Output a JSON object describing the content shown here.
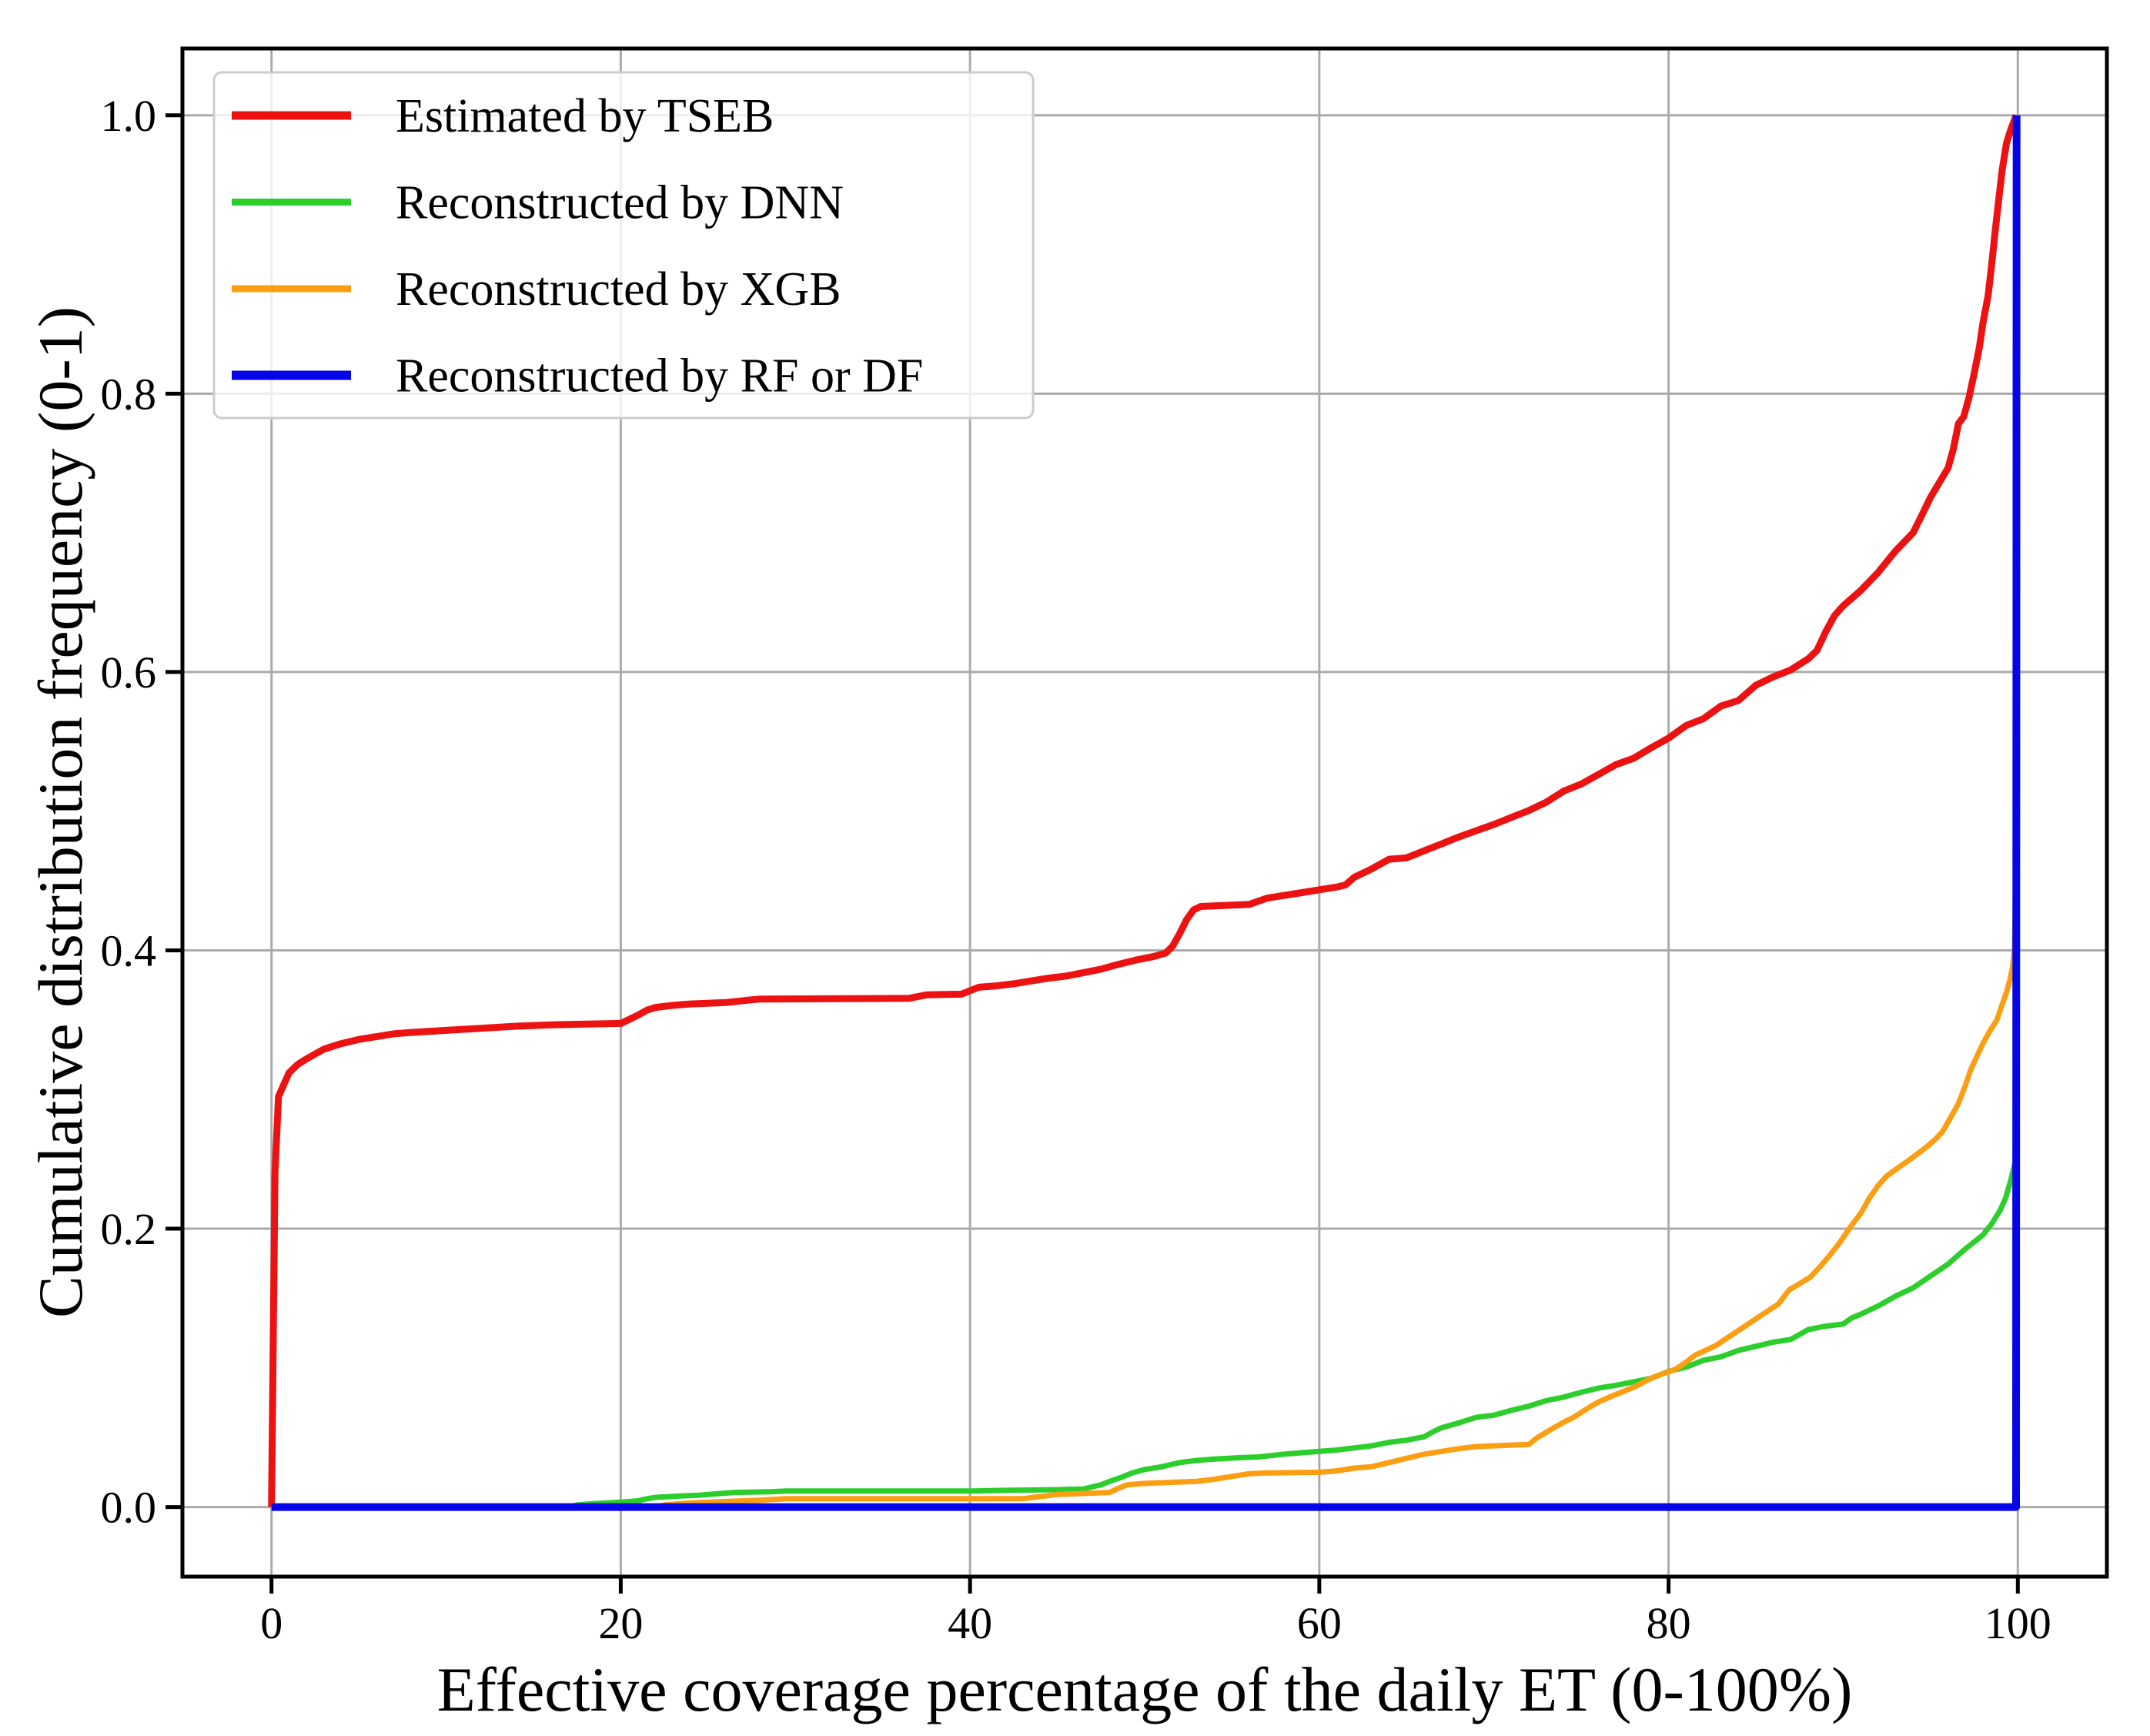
{
  "figure": {
    "background": "#ffffff",
    "grid_color": "#ababab",
    "spine_color": "#000000",
    "legend_border_color": "#cccccc",
    "legend_background": "rgba(255,255,255,0.8)"
  },
  "chart_data": {
    "type": "line",
    "subtype": "empirical-cdf",
    "title": "",
    "xlabel": "Effective coverage percentage of the daily ET (0-100%)",
    "ylabel": "Cumulative distribution frequency (0-1)",
    "xlim": [
      -5.1,
      105.1
    ],
    "ylim": [
      -0.05,
      1.048
    ],
    "xticks": [
      0,
      20,
      40,
      60,
      80,
      100
    ],
    "xtick_labels": [
      "0",
      "20",
      "40",
      "60",
      "80",
      "100"
    ],
    "yticks": [
      0.0,
      0.2,
      0.4,
      0.6,
      0.8,
      1.0
    ],
    "ytick_labels": [
      "0.0",
      "0.2",
      "0.4",
      "0.6",
      "0.8",
      "1.0"
    ],
    "grid": true,
    "legend_position": "upper-left",
    "series": [
      {
        "name": "Estimated by TSEB",
        "color": "#ec1212",
        "width": 9,
        "points": [
          [
            0,
            0
          ],
          [
            0.2,
            0.24
          ],
          [
            0.4,
            0.295
          ],
          [
            1,
            0.312
          ],
          [
            1.5,
            0.318
          ],
          [
            2,
            0.322
          ],
          [
            3,
            0.329
          ],
          [
            4,
            0.333
          ],
          [
            5,
            0.336
          ],
          [
            6,
            0.338
          ],
          [
            7,
            0.34
          ],
          [
            8,
            0.341
          ],
          [
            10,
            0.3425
          ],
          [
            12,
            0.344
          ],
          [
            14,
            0.3455
          ],
          [
            16,
            0.3465
          ],
          [
            18,
            0.347
          ],
          [
            20,
            0.3475
          ],
          [
            20.5,
            0.3505
          ],
          [
            21,
            0.3535
          ],
          [
            21.5,
            0.357
          ],
          [
            22,
            0.359
          ],
          [
            23,
            0.3605
          ],
          [
            24,
            0.3615
          ],
          [
            26,
            0.3625
          ],
          [
            27.5,
            0.3645
          ],
          [
            28,
            0.365
          ],
          [
            36.5,
            0.3655
          ],
          [
            37.5,
            0.368
          ],
          [
            39.5,
            0.3685
          ],
          [
            40,
            0.371
          ],
          [
            40.5,
            0.3735
          ],
          [
            41.5,
            0.3745
          ],
          [
            42.5,
            0.376
          ],
          [
            43.5,
            0.378
          ],
          [
            44.5,
            0.38
          ],
          [
            45.5,
            0.3815
          ],
          [
            46.5,
            0.384
          ],
          [
            47.5,
            0.3865
          ],
          [
            48.5,
            0.39
          ],
          [
            49.5,
            0.393
          ],
          [
            50.5,
            0.3955
          ],
          [
            51.2,
            0.398
          ],
          [
            51.6,
            0.403
          ],
          [
            52,
            0.412
          ],
          [
            52.4,
            0.422
          ],
          [
            52.8,
            0.429
          ],
          [
            53.2,
            0.4315
          ],
          [
            56,
            0.433
          ],
          [
            57,
            0.4375
          ],
          [
            58,
            0.4395
          ],
          [
            59,
            0.4415
          ],
          [
            60,
            0.4435
          ],
          [
            61,
            0.4455
          ],
          [
            61.5,
            0.447
          ],
          [
            62,
            0.4525
          ],
          [
            63,
            0.4585
          ],
          [
            64,
            0.4655
          ],
          [
            65,
            0.4665
          ],
          [
            66,
            0.4715
          ],
          [
            67,
            0.4765
          ],
          [
            68,
            0.4815
          ],
          [
            69,
            0.486
          ],
          [
            70,
            0.4905
          ],
          [
            71,
            0.4955
          ],
          [
            72,
            0.5005
          ],
          [
            73,
            0.5065
          ],
          [
            74,
            0.5145
          ],
          [
            75,
            0.5195
          ],
          [
            76,
            0.5265
          ],
          [
            77,
            0.5335
          ],
          [
            78,
            0.538
          ],
          [
            79,
            0.5455
          ],
          [
            80,
            0.5525
          ],
          [
            81,
            0.5615
          ],
          [
            82,
            0.5665
          ],
          [
            83,
            0.5755
          ],
          [
            84,
            0.5795
          ],
          [
            85,
            0.5905
          ],
          [
            86,
            0.5965
          ],
          [
            87,
            0.6015
          ],
          [
            88,
            0.6095
          ],
          [
            88.5,
            0.6155
          ],
          [
            89,
            0.629
          ],
          [
            89.5,
            0.6405
          ],
          [
            90,
            0.6475
          ],
          [
            91,
            0.6585
          ],
          [
            92,
            0.6715
          ],
          [
            93,
            0.687
          ],
          [
            94,
            0.7
          ],
          [
            94.5,
            0.7125
          ],
          [
            95,
            0.7255
          ],
          [
            95.5,
            0.736
          ],
          [
            96,
            0.7465
          ],
          [
            96.3,
            0.76
          ],
          [
            96.6,
            0.7785
          ],
          [
            96.9,
            0.7835
          ],
          [
            97.2,
            0.797
          ],
          [
            97.5,
            0.8145
          ],
          [
            97.8,
            0.8335
          ],
          [
            98,
            0.8505
          ],
          [
            98.3,
            0.8705
          ],
          [
            98.5,
            0.8925
          ],
          [
            98.7,
            0.9165
          ],
          [
            98.9,
            0.9385
          ],
          [
            99.1,
            0.9605
          ],
          [
            99.35,
            0.98
          ],
          [
            99.6,
            0.99
          ],
          [
            99.8,
            0.9965
          ],
          [
            99.9,
            1.0
          ]
        ]
      },
      {
        "name": "Reconstructed by DNN",
        "color": "#2bce2b",
        "width": 7,
        "points": [
          [
            0,
            0
          ],
          [
            17,
            0
          ],
          [
            17.5,
            0.0015
          ],
          [
            18.5,
            0.0025
          ],
          [
            20,
            0.0035
          ],
          [
            21,
            0.0045
          ],
          [
            21.5,
            0.006
          ],
          [
            22,
            0.007
          ],
          [
            23.5,
            0.008
          ],
          [
            24.5,
            0.0085
          ],
          [
            25.5,
            0.0095
          ],
          [
            26.5,
            0.0105
          ],
          [
            28.5,
            0.011
          ],
          [
            29.5,
            0.0115
          ],
          [
            40,
            0.0115
          ],
          [
            42,
            0.012
          ],
          [
            45,
            0.0125
          ],
          [
            46.5,
            0.013
          ],
          [
            47,
            0.0145
          ],
          [
            47.5,
            0.016
          ],
          [
            48,
            0.0185
          ],
          [
            48.6,
            0.021
          ],
          [
            49.3,
            0.0245
          ],
          [
            50,
            0.027
          ],
          [
            51,
            0.029
          ],
          [
            52,
            0.032
          ],
          [
            53,
            0.0335
          ],
          [
            54,
            0.0345
          ],
          [
            55.5,
            0.0355
          ],
          [
            56.5,
            0.036
          ],
          [
            58,
            0.038
          ],
          [
            60,
            0.04
          ],
          [
            61,
            0.041
          ],
          [
            62,
            0.0425
          ],
          [
            63,
            0.044
          ],
          [
            64,
            0.0465
          ],
          [
            65,
            0.048
          ],
          [
            66,
            0.0505
          ],
          [
            66.5,
            0.054
          ],
          [
            67,
            0.057
          ],
          [
            68,
            0.0605
          ],
          [
            69,
            0.0645
          ],
          [
            70,
            0.066
          ],
          [
            71,
            0.0695
          ],
          [
            72,
            0.0725
          ],
          [
            73,
            0.0765
          ],
          [
            74,
            0.079
          ],
          [
            75,
            0.0825
          ],
          [
            76,
            0.0855
          ],
          [
            77,
            0.0875
          ],
          [
            78,
            0.09
          ],
          [
            79,
            0.0925
          ],
          [
            80,
            0.0975
          ],
          [
            81,
            0.1005
          ],
          [
            82,
            0.1055
          ],
          [
            83,
            0.108
          ],
          [
            84,
            0.1125
          ],
          [
            85,
            0.1155
          ],
          [
            86,
            0.1185
          ],
          [
            87,
            0.1205
          ],
          [
            88,
            0.1275
          ],
          [
            89,
            0.13
          ],
          [
            90,
            0.1315
          ],
          [
            90.5,
            0.136
          ],
          [
            91,
            0.1385
          ],
          [
            92,
            0.1445
          ],
          [
            93,
            0.1515
          ],
          [
            94,
            0.1575
          ],
          [
            95,
            0.166
          ],
          [
            96,
            0.1745
          ],
          [
            97,
            0.1855
          ],
          [
            97.5,
            0.1905
          ],
          [
            98,
            0.1955
          ],
          [
            98.5,
            0.2035
          ],
          [
            99,
            0.2135
          ],
          [
            99.3,
            0.222
          ],
          [
            99.6,
            0.235
          ],
          [
            99.85,
            0.248
          ],
          [
            99.95,
            0.253
          ]
        ]
      },
      {
        "name": "Reconstructed by XGB",
        "color": "#fb9e12",
        "width": 7,
        "points": [
          [
            0,
            0
          ],
          [
            22,
            0
          ],
          [
            22.5,
            0.0015
          ],
          [
            24,
            0.003
          ],
          [
            26,
            0.004
          ],
          [
            28,
            0.005
          ],
          [
            29.5,
            0.006
          ],
          [
            43,
            0.006
          ],
          [
            44,
            0.0075
          ],
          [
            45,
            0.009
          ],
          [
            46,
            0.0095
          ],
          [
            48,
            0.0105
          ],
          [
            48.5,
            0.0135
          ],
          [
            49,
            0.016
          ],
          [
            50,
            0.017
          ],
          [
            53,
            0.0185
          ],
          [
            54,
            0.02
          ],
          [
            55,
            0.022
          ],
          [
            56,
            0.024
          ],
          [
            57,
            0.0245
          ],
          [
            60,
            0.025
          ],
          [
            61,
            0.026
          ],
          [
            62,
            0.028
          ],
          [
            63,
            0.029
          ],
          [
            64,
            0.032
          ],
          [
            65,
            0.035
          ],
          [
            66,
            0.038
          ],
          [
            67,
            0.04
          ],
          [
            68,
            0.042
          ],
          [
            69,
            0.0435
          ],
          [
            72,
            0.045
          ],
          [
            72.5,
            0.05
          ],
          [
            73.3,
            0.056
          ],
          [
            74,
            0.061
          ],
          [
            74.5,
            0.064
          ],
          [
            75.5,
            0.072
          ],
          [
            76,
            0.0755
          ],
          [
            76.8,
            0.08
          ],
          [
            78,
            0.086
          ],
          [
            79,
            0.0925
          ],
          [
            79.5,
            0.095
          ],
          [
            80.4,
            0.099
          ],
          [
            81,
            0.104
          ],
          [
            81.5,
            0.109
          ],
          [
            82.7,
            0.116
          ],
          [
            83.9,
            0.126
          ],
          [
            85.1,
            0.136
          ],
          [
            86.3,
            0.146
          ],
          [
            86.9,
            0.156
          ],
          [
            88.1,
            0.165
          ],
          [
            88.7,
            0.173
          ],
          [
            89.3,
            0.182
          ],
          [
            89.8,
            0.19
          ],
          [
            90.4,
            0.201
          ],
          [
            91,
            0.211
          ],
          [
            91.5,
            0.222
          ],
          [
            92,
            0.231
          ],
          [
            92.5,
            0.238
          ],
          [
            93,
            0.2425
          ],
          [
            93.8,
            0.2495
          ],
          [
            94.8,
            0.259
          ],
          [
            95.3,
            0.2645
          ],
          [
            95.7,
            0.27
          ],
          [
            96.2,
            0.281
          ],
          [
            96.6,
            0.29
          ],
          [
            97,
            0.303
          ],
          [
            97.3,
            0.314
          ],
          [
            97.7,
            0.325
          ],
          [
            98,
            0.333
          ],
          [
            98.4,
            0.342
          ],
          [
            98.8,
            0.35
          ],
          [
            99.1,
            0.361
          ],
          [
            99.35,
            0.37
          ],
          [
            99.55,
            0.379
          ],
          [
            99.7,
            0.388
          ],
          [
            99.8,
            0.4
          ],
          [
            99.85,
            0.43
          ],
          [
            99.88,
            0.468
          ],
          [
            99.9,
            0.52
          ]
        ]
      },
      {
        "name": "Reconstructed by RF or DF",
        "color": "#0505e8",
        "width": 10,
        "points": [
          [
            0,
            0
          ],
          [
            99.9,
            0
          ],
          [
            99.93,
            1.0
          ]
        ]
      }
    ]
  }
}
